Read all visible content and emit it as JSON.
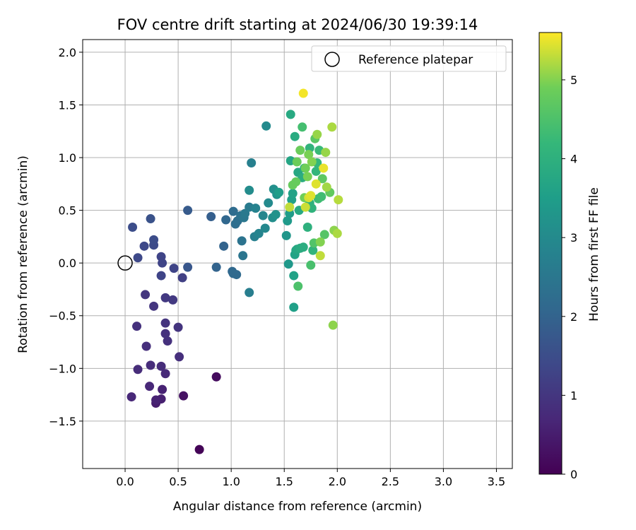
{
  "chart_data": {
    "type": "scatter",
    "title": "FOV centre drift starting at 2024/06/30 19:39:14",
    "xlabel": "Angular distance from reference (arcmin)",
    "ylabel": "Rotation from reference (arcmin)",
    "xlim": [
      -0.4,
      3.65
    ],
    "ylim": [
      -1.95,
      2.12
    ],
    "xticks": [
      "0.0",
      "0.5",
      "1.0",
      "1.5",
      "2.0",
      "2.5",
      "3.0",
      "3.5"
    ],
    "yticks": [
      "−1.5",
      "−1.0",
      "−0.5",
      "0.0",
      "0.5",
      "1.0",
      "1.5",
      "2.0"
    ],
    "grid": true,
    "legend": {
      "placement": "top-right",
      "entries": [
        "Reference platepar"
      ]
    },
    "colorbar": {
      "label": "Hours from first FF file",
      "range": [
        0,
        5.6
      ],
      "ticks": [
        "0",
        "1",
        "2",
        "3",
        "4",
        "5"
      ],
      "colormap": "viridis"
    },
    "reference_point": {
      "x": 0.0,
      "y": 0.0
    },
    "points": [
      {
        "x": 0.7,
        "y": -1.77,
        "t": 0.05
      },
      {
        "x": 0.86,
        "y": -1.08,
        "t": 0.2
      },
      {
        "x": 0.55,
        "y": -1.26,
        "t": 0.3
      },
      {
        "x": 0.29,
        "y": -1.33,
        "t": 0.5
      },
      {
        "x": 0.34,
        "y": -1.29,
        "t": 0.55
      },
      {
        "x": 0.29,
        "y": -1.3,
        "t": 0.6
      },
      {
        "x": 0.35,
        "y": -1.2,
        "t": 0.6
      },
      {
        "x": 0.06,
        "y": -1.27,
        "t": 0.7
      },
      {
        "x": 0.23,
        "y": -1.17,
        "t": 0.7
      },
      {
        "x": 0.38,
        "y": -1.05,
        "t": 0.75
      },
      {
        "x": 0.12,
        "y": -1.01,
        "t": 0.8
      },
      {
        "x": 0.24,
        "y": -0.97,
        "t": 0.8
      },
      {
        "x": 0.34,
        "y": -0.98,
        "t": 0.8
      },
      {
        "x": 0.51,
        "y": -0.89,
        "t": 0.85
      },
      {
        "x": 0.2,
        "y": -0.79,
        "t": 0.85
      },
      {
        "x": 0.4,
        "y": -0.74,
        "t": 0.9
      },
      {
        "x": 0.38,
        "y": -0.67,
        "t": 0.9
      },
      {
        "x": 0.11,
        "y": -0.6,
        "t": 0.9
      },
      {
        "x": 0.38,
        "y": -0.57,
        "t": 0.95
      },
      {
        "x": 0.5,
        "y": -0.61,
        "t": 0.95
      },
      {
        "x": 0.27,
        "y": -0.41,
        "t": 1.0
      },
      {
        "x": 0.19,
        "y": -0.3,
        "t": 1.0
      },
      {
        "x": 0.38,
        "y": -0.33,
        "t": 1.05
      },
      {
        "x": 0.45,
        "y": -0.35,
        "t": 1.05
      },
      {
        "x": 0.54,
        "y": -0.14,
        "t": 1.2
      },
      {
        "x": 0.34,
        "y": -0.12,
        "t": 1.3
      },
      {
        "x": 0.46,
        "y": -0.05,
        "t": 1.3
      },
      {
        "x": 0.35,
        "y": 0.0,
        "t": 1.3
      },
      {
        "x": 0.34,
        "y": 0.06,
        "t": 1.3
      },
      {
        "x": 0.12,
        "y": 0.05,
        "t": 1.4
      },
      {
        "x": 0.18,
        "y": 0.16,
        "t": 1.4
      },
      {
        "x": 0.27,
        "y": 0.17,
        "t": 1.45
      },
      {
        "x": 0.27,
        "y": 0.22,
        "t": 1.5
      },
      {
        "x": 0.07,
        "y": 0.34,
        "t": 1.5
      },
      {
        "x": 0.24,
        "y": 0.42,
        "t": 1.6
      },
      {
        "x": 0.59,
        "y": -0.04,
        "t": 1.7
      },
      {
        "x": 0.59,
        "y": 0.5,
        "t": 1.8
      },
      {
        "x": 0.81,
        "y": 0.44,
        "t": 1.9
      },
      {
        "x": 0.86,
        "y": -0.04,
        "t": 2.0
      },
      {
        "x": 0.93,
        "y": 0.16,
        "t": 2.0
      },
      {
        "x": 0.95,
        "y": 0.41,
        "t": 2.1
      },
      {
        "x": 1.01,
        "y": -0.08,
        "t": 2.1
      },
      {
        "x": 1.02,
        "y": -0.1,
        "t": 2.15
      },
      {
        "x": 1.05,
        "y": -0.11,
        "t": 2.15
      },
      {
        "x": 1.02,
        "y": 0.49,
        "t": 2.2
      },
      {
        "x": 1.04,
        "y": 0.37,
        "t": 2.25
      },
      {
        "x": 1.06,
        "y": 0.4,
        "t": 2.3
      },
      {
        "x": 1.09,
        "y": 0.45,
        "t": 2.35
      },
      {
        "x": 1.1,
        "y": 0.21,
        "t": 2.4
      },
      {
        "x": 1.11,
        "y": 0.07,
        "t": 2.45
      },
      {
        "x": 1.12,
        "y": 0.43,
        "t": 2.5
      },
      {
        "x": 1.13,
        "y": 0.47,
        "t": 2.55
      },
      {
        "x": 1.17,
        "y": 0.53,
        "t": 2.6
      },
      {
        "x": 1.17,
        "y": -0.28,
        "t": 2.7
      },
      {
        "x": 1.19,
        "y": 0.95,
        "t": 2.75
      },
      {
        "x": 1.22,
        "y": 0.25,
        "t": 2.75
      },
      {
        "x": 1.23,
        "y": 0.52,
        "t": 2.8
      },
      {
        "x": 1.26,
        "y": 0.28,
        "t": 2.85
      },
      {
        "x": 1.3,
        "y": 0.45,
        "t": 2.9
      },
      {
        "x": 1.32,
        "y": 0.33,
        "t": 2.95
      },
      {
        "x": 1.33,
        "y": 1.3,
        "t": 3.0
      },
      {
        "x": 1.35,
        "y": 0.57,
        "t": 3.0
      },
      {
        "x": 1.17,
        "y": 0.69,
        "t": 3.05
      },
      {
        "x": 1.39,
        "y": 0.43,
        "t": 3.1
      },
      {
        "x": 1.4,
        "y": 0.7,
        "t": 3.15
      },
      {
        "x": 1.42,
        "y": 0.46,
        "t": 3.2
      },
      {
        "x": 1.43,
        "y": 0.65,
        "t": 3.25
      },
      {
        "x": 1.52,
        "y": 0.26,
        "t": 3.3
      },
      {
        "x": 1.54,
        "y": -0.01,
        "t": 3.35
      },
      {
        "x": 1.53,
        "y": 0.4,
        "t": 3.4
      },
      {
        "x": 1.55,
        "y": 0.47,
        "t": 3.45
      },
      {
        "x": 1.45,
        "y": 0.67,
        "t": 3.5
      },
      {
        "x": 1.57,
        "y": 0.6,
        "t": 3.55
      },
      {
        "x": 1.59,
        "y": -0.42,
        "t": 3.55
      },
      {
        "x": 1.59,
        "y": -0.12,
        "t": 3.6
      },
      {
        "x": 1.58,
        "y": 0.66,
        "t": 3.6
      },
      {
        "x": 1.6,
        "y": 0.08,
        "t": 3.65
      },
      {
        "x": 1.61,
        "y": 0.12,
        "t": 3.7
      },
      {
        "x": 1.56,
        "y": 0.97,
        "t": 3.7
      },
      {
        "x": 1.63,
        "y": 0.86,
        "t": 3.75
      },
      {
        "x": 1.62,
        "y": 0.13,
        "t": 3.75
      },
      {
        "x": 1.64,
        "y": 0.5,
        "t": 3.8
      },
      {
        "x": 1.56,
        "y": 1.41,
        "t": 3.8
      },
      {
        "x": 1.6,
        "y": 1.2,
        "t": 3.85
      },
      {
        "x": 1.65,
        "y": 0.14,
        "t": 3.85
      },
      {
        "x": 1.67,
        "y": 0.81,
        "t": 3.9
      },
      {
        "x": 1.68,
        "y": 0.15,
        "t": 3.9
      },
      {
        "x": 1.69,
        "y": 0.9,
        "t": 3.95
      },
      {
        "x": 1.72,
        "y": 0.34,
        "t": 4.0
      },
      {
        "x": 1.74,
        "y": 0.57,
        "t": 4.0
      },
      {
        "x": 1.76,
        "y": 0.52,
        "t": 4.05
      },
      {
        "x": 1.77,
        "y": 0.12,
        "t": 4.1
      },
      {
        "x": 1.74,
        "y": 1.09,
        "t": 4.1
      },
      {
        "x": 1.8,
        "y": 0.87,
        "t": 4.15
      },
      {
        "x": 1.81,
        "y": 0.95,
        "t": 4.2
      },
      {
        "x": 1.83,
        "y": 1.07,
        "t": 4.25
      },
      {
        "x": 1.82,
        "y": 0.61,
        "t": 4.3
      },
      {
        "x": 1.85,
        "y": 0.63,
        "t": 4.35
      },
      {
        "x": 1.67,
        "y": 1.29,
        "t": 4.4
      },
      {
        "x": 1.75,
        "y": -0.02,
        "t": 4.45
      },
      {
        "x": 1.63,
        "y": -0.22,
        "t": 4.5
      },
      {
        "x": 1.78,
        "y": 0.19,
        "t": 4.55
      },
      {
        "x": 1.88,
        "y": 0.27,
        "t": 4.6
      },
      {
        "x": 1.79,
        "y": 1.18,
        "t": 4.65
      },
      {
        "x": 1.86,
        "y": 0.8,
        "t": 4.7
      },
      {
        "x": 1.93,
        "y": 0.67,
        "t": 4.75
      },
      {
        "x": 1.58,
        "y": 0.74,
        "t": 4.8
      },
      {
        "x": 1.61,
        "y": 0.77,
        "t": 4.8
      },
      {
        "x": 1.62,
        "y": 0.96,
        "t": 4.85
      },
      {
        "x": 1.65,
        "y": 1.07,
        "t": 4.85
      },
      {
        "x": 1.69,
        "y": 0.62,
        "t": 4.9
      },
      {
        "x": 1.7,
        "y": 0.9,
        "t": 4.9
      },
      {
        "x": 1.72,
        "y": 0.82,
        "t": 4.95
      },
      {
        "x": 1.73,
        "y": 1.03,
        "t": 4.95
      },
      {
        "x": 1.76,
        "y": 0.96,
        "t": 5.0
      },
      {
        "x": 1.84,
        "y": 0.2,
        "t": 5.0
      },
      {
        "x": 1.96,
        "y": -0.59,
        "t": 5.05
      },
      {
        "x": 1.97,
        "y": 0.31,
        "t": 5.05
      },
      {
        "x": 1.81,
        "y": 1.22,
        "t": 5.1
      },
      {
        "x": 1.89,
        "y": 1.05,
        "t": 5.1
      },
      {
        "x": 1.9,
        "y": 0.72,
        "t": 5.15
      },
      {
        "x": 1.95,
        "y": 1.29,
        "t": 5.2
      },
      {
        "x": 2.0,
        "y": 0.28,
        "t": 5.2
      },
      {
        "x": 2.01,
        "y": 0.6,
        "t": 5.25
      },
      {
        "x": 1.84,
        "y": 0.07,
        "t": 5.3
      },
      {
        "x": 1.55,
        "y": 0.53,
        "t": 5.3
      },
      {
        "x": 1.7,
        "y": 0.53,
        "t": 5.35
      },
      {
        "x": 1.73,
        "y": 0.62,
        "t": 5.4
      },
      {
        "x": 1.75,
        "y": 0.64,
        "t": 5.45
      },
      {
        "x": 1.8,
        "y": 0.75,
        "t": 5.45
      },
      {
        "x": 1.87,
        "y": 0.9,
        "t": 5.5
      },
      {
        "x": 1.68,
        "y": 1.61,
        "t": 5.55
      }
    ]
  }
}
